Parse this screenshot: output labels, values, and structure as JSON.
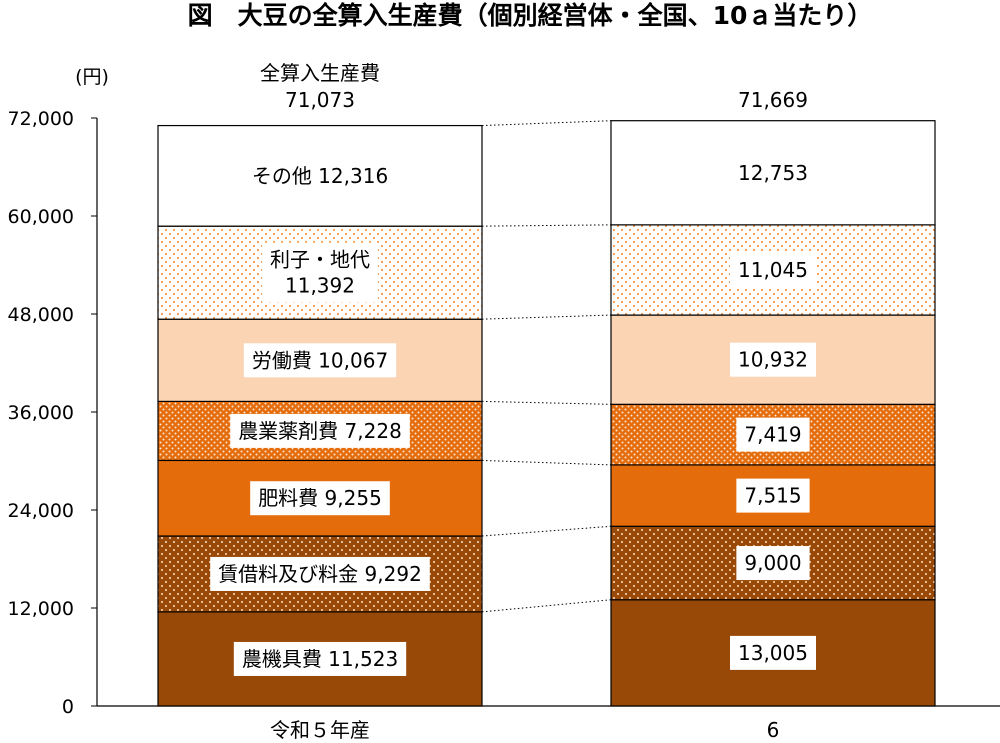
{
  "chart_data": {
    "type": "bar",
    "stacked": true,
    "title": "図　大豆の全算入生産費（個別経営体・全国、10ａ当たり）",
    "ylabel": "(円)",
    "ylim": [
      0,
      72000
    ],
    "yticks": [
      0,
      12000,
      24000,
      36000,
      48000,
      60000,
      72000
    ],
    "ytick_labels": [
      "0",
      "12,000",
      "24,000",
      "36,000",
      "48,000",
      "60,000",
      "72,000"
    ],
    "categories": [
      "令和５年産",
      "6"
    ],
    "totals": [
      71073,
      71669
    ],
    "total_labels": [
      "71,073",
      "71,669"
    ],
    "total_name": "全算入生産費",
    "series": [
      {
        "name": "農機具費",
        "values": [
          11523,
          13005
        ],
        "value_labels": [
          "11,523",
          "13,005"
        ],
        "color": "#984807",
        "pattern": "solid"
      },
      {
        "name": "賃借料及び料金",
        "values": [
          9292,
          9000
        ],
        "value_labels": [
          "9,292",
          "9,000"
        ],
        "color": "#984807",
        "pattern": "dots-light"
      },
      {
        "name": "肥料費",
        "values": [
          9255,
          7515
        ],
        "value_labels": [
          "9,255",
          "7,515"
        ],
        "color": "#E46C0A",
        "pattern": "solid"
      },
      {
        "name": "農業薬剤費",
        "values": [
          7228,
          7419
        ],
        "value_labels": [
          "7,228",
          "7,419"
        ],
        "color": "#E46C0A",
        "pattern": "crosshatch"
      },
      {
        "name": "労働費",
        "values": [
          10067,
          10932
        ],
        "value_labels": [
          "10,067",
          "10,932"
        ],
        "color": "#FBD4B4",
        "pattern": "solid"
      },
      {
        "name": "利子・地代",
        "values": [
          11392,
          11045
        ],
        "value_labels": [
          "11,392",
          "11,045"
        ],
        "color": "#F79646",
        "pattern": "dots-on-white"
      },
      {
        "name": "その他",
        "values": [
          12316,
          12753
        ],
        "value_labels": [
          "12,316",
          "12,753"
        ],
        "color": "#FFFFFF",
        "pattern": "solid"
      }
    ],
    "connector_lines": "dotted",
    "grid": false,
    "legend": "none"
  }
}
